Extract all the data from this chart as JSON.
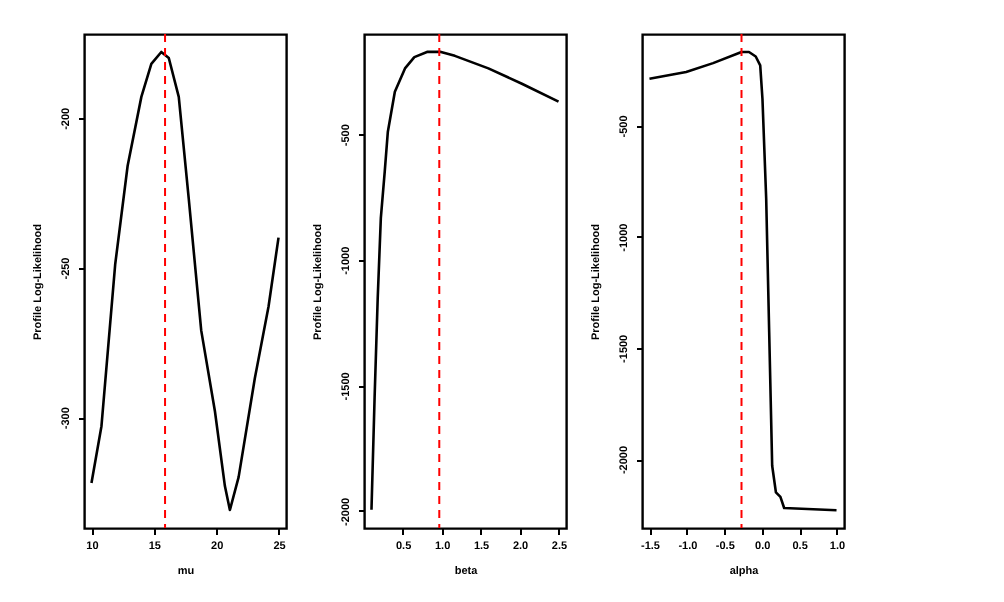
{
  "chart_data": [
    {
      "type": "line",
      "xlabel": "mu",
      "ylabel": "Profile Log-Likelihood",
      "xlim": [
        9.4,
        25.6
      ],
      "ylim": [
        -337,
        -172
      ],
      "xticks": [
        10,
        15,
        20,
        25
      ],
      "yticks": [
        -200,
        -250,
        -300
      ],
      "grid": false,
      "line_style": "solid",
      "x": [
        10,
        10.8,
        11.9,
        12.9,
        14.0,
        14.8,
        15.6,
        16.2,
        17.0,
        17.8,
        18.8,
        19.9,
        20.7,
        21.1,
        21.8,
        23.1,
        24.2,
        25
      ],
      "series": [
        {
          "color": "#000000",
          "values": [
            -322,
            -303,
            -249,
            -216,
            -193,
            -182,
            -178,
            -180,
            -193,
            -227,
            -271,
            -298,
            -323,
            -331,
            -320,
            -287,
            -263,
            -240
          ]
        }
      ],
      "ref_lines": [
        {
          "axis": "x",
          "value": 15.9,
          "color": "#ff0000",
          "line_style": "dashed"
        }
      ]
    },
    {
      "type": "line",
      "xlabel": "beta",
      "ylabel": "Profile Log-Likelihood",
      "xlim": [
        0.004,
        2.596
      ],
      "ylim": [
        -2068,
        -101
      ],
      "xticks": [
        0.5,
        {
          "value": 1,
          "label": "1.0"
        },
        1.5,
        {
          "value": 2,
          "label": "2.0"
        },
        2.5
      ],
      "yticks": [
        -500,
        -1000,
        -1500,
        -2000
      ],
      "grid": false,
      "line_style": "solid",
      "x": [
        0.1,
        0.14,
        0.18,
        0.22,
        0.27,
        0.31,
        0.4,
        0.53,
        0.65,
        0.82,
        0.98,
        1.17,
        1.6,
        2.03,
        2.5
      ],
      "series": [
        {
          "color": "#000000",
          "values": [
            -1995,
            -1549,
            -1152,
            -834,
            -649,
            -490,
            -331,
            -238,
            -193,
            -172,
            -172,
            -188,
            -238,
            -299,
            -370
          ]
        }
      ],
      "ref_lines": [
        {
          "axis": "x",
          "value": 0.97,
          "color": "#ff0000",
          "line_style": "dashed"
        }
      ]
    },
    {
      "type": "line",
      "xlabel": "alpha",
      "ylabel": "Profile Log-Likelihood",
      "xlim": [
        -1.6,
        1.1
      ],
      "ylim": [
        -2310,
        -89
      ],
      "xticks": [
        -1.5,
        {
          "value": -1,
          "label": "-1.0"
        },
        -0.5,
        {
          "value": 0,
          "label": "0.0"
        },
        0.5,
        {
          "value": 1,
          "label": "1.0"
        }
      ],
      "yticks": [
        -500,
        -1000,
        -1500,
        -2000
      ],
      "grid": false,
      "line_style": "solid",
      "x": [
        -1.5,
        -1.01,
        -0.65,
        -0.27,
        -0.17,
        -0.08,
        -0.02,
        0.01,
        0.06,
        0.1,
        0.14,
        0.19,
        0.25,
        0.3,
        1.0
      ],
      "series": [
        {
          "color": "#000000",
          "values": [
            -290,
            -260,
            -220,
            -170,
            -170,
            -190,
            -230,
            -380,
            -830,
            -1430,
            -2030,
            -2150,
            -2170,
            -2220,
            -2230
          ]
        }
      ],
      "ref_lines": [
        {
          "axis": "x",
          "value": -0.27,
          "color": "#ff0000",
          "line_style": "dashed"
        }
      ]
    }
  ]
}
